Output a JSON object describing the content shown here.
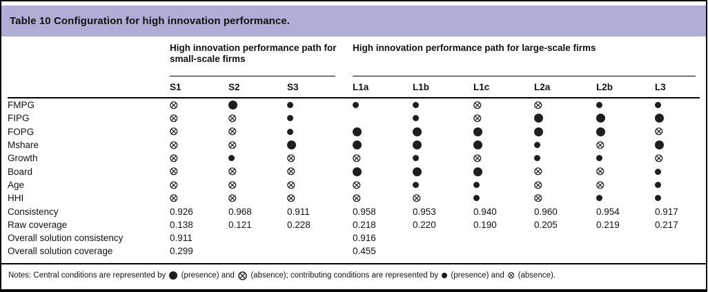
{
  "title": "Table 10 Configuration for high innovation performance.",
  "groups": [
    {
      "id": "small",
      "label": "High innovation performance path for small-scale firms"
    },
    {
      "id": "large",
      "label": "High innovation performance path for large-scale firms"
    }
  ],
  "columns": [
    "S1",
    "S2",
    "S3",
    "L1a",
    "L1b",
    "L1c",
    "L2a",
    "L2b",
    "L3"
  ],
  "symbol_key": {
    "CP": "central-presence-icon",
    "CA": "central-absence-icon",
    "P": "contributing-presence-icon",
    "A": "contributing-absence-icon"
  },
  "chart_data": {
    "type": "table",
    "title": "Table 10 Configuration for high innovation performance.",
    "column_groups": {
      "small_scale": [
        "S1",
        "S2",
        "S3"
      ],
      "large_scale": [
        "L1a",
        "L1b",
        "L1c",
        "L2a",
        "L2b",
        "L3"
      ]
    },
    "legend_meaning": "CP=central presence (large filled circle), CA=central absence (large crossed circle), P=contributing presence (small filled circle), A=contributing absence (small crossed circle), empty=condition not in path"
  },
  "rows": [
    {
      "label": "FMPG",
      "cells": [
        "A",
        "CP",
        "P",
        "P",
        "P",
        "A",
        "A",
        "P",
        "P"
      ]
    },
    {
      "label": "FIPG",
      "cells": [
        "A",
        "A",
        "P",
        "",
        "P",
        "A",
        "CP",
        "CP",
        "CP"
      ]
    },
    {
      "label": "FOPG",
      "cells": [
        "A",
        "A",
        "P",
        "CP",
        "CP",
        "CP",
        "CP",
        "CP",
        "A"
      ]
    },
    {
      "label": "Mshare",
      "cells": [
        "A",
        "A",
        "CP",
        "CP",
        "CP",
        "CP",
        "P",
        "A",
        "CP"
      ]
    },
    {
      "label": "Growth",
      "cells": [
        "A",
        "P",
        "A",
        "A",
        "P",
        "A",
        "P",
        "P",
        "A"
      ]
    },
    {
      "label": "Board",
      "cells": [
        "A",
        "A",
        "A",
        "CP",
        "CP",
        "CP",
        "A",
        "A",
        "P"
      ]
    },
    {
      "label": "Age",
      "cells": [
        "A",
        "A",
        "A",
        "A",
        "P",
        "P",
        "A",
        "A",
        "P"
      ]
    },
    {
      "label": "HHI",
      "cells": [
        "A",
        "A",
        "A",
        "A",
        "A",
        "P",
        "A",
        "P",
        "P"
      ]
    },
    {
      "label": "Consistency",
      "cells": [
        "0.926",
        "0.968",
        "0.911",
        "0.958",
        "0.953",
        "0.940",
        "0.960",
        "0.954",
        "0.917"
      ]
    },
    {
      "label": "Raw coverage",
      "cells": [
        "0.138",
        "0.121",
        "0.228",
        "0.218",
        "0.220",
        "0.190",
        "0.205",
        "0.219",
        "0.217"
      ]
    },
    {
      "label": "Overall solution consistency",
      "cells": [
        "0.911",
        "",
        "",
        "0.916",
        "",
        "",
        "",
        "",
        ""
      ]
    },
    {
      "label": "Overall solution coverage",
      "cells": [
        "0.299",
        "",
        "",
        "0.455",
        "",
        "",
        "",
        "",
        ""
      ]
    }
  ],
  "notes_segments": [
    {
      "text": "Notes: Central conditions are represented by "
    },
    {
      "sym": "CP"
    },
    {
      "text": " (presence) and "
    },
    {
      "sym": "CA"
    },
    {
      "text": " (absence); contributing conditions are represented by "
    },
    {
      "sym": "P"
    },
    {
      "text": " (presence) and "
    },
    {
      "sym": "A"
    },
    {
      "text": " (absence)."
    }
  ],
  "colors": {
    "title_band": "#afaed6",
    "symbol": "#1e1e1e",
    "border": "#000000"
  }
}
